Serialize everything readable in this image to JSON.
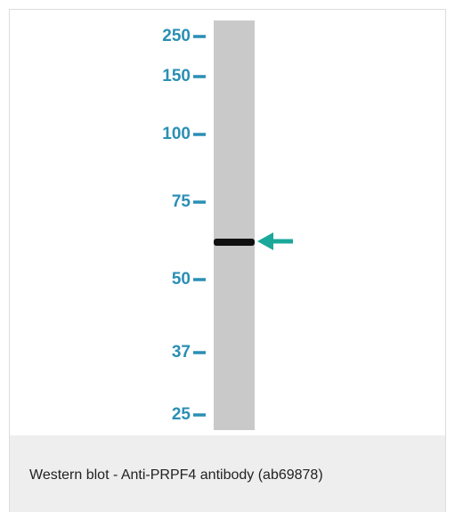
{
  "figure": {
    "markers": [
      "250",
      "150",
      "100",
      "75",
      "50",
      "37",
      "25"
    ],
    "caption": "Western blot - Anti-PRPF4 antibody (ab69878)"
  }
}
